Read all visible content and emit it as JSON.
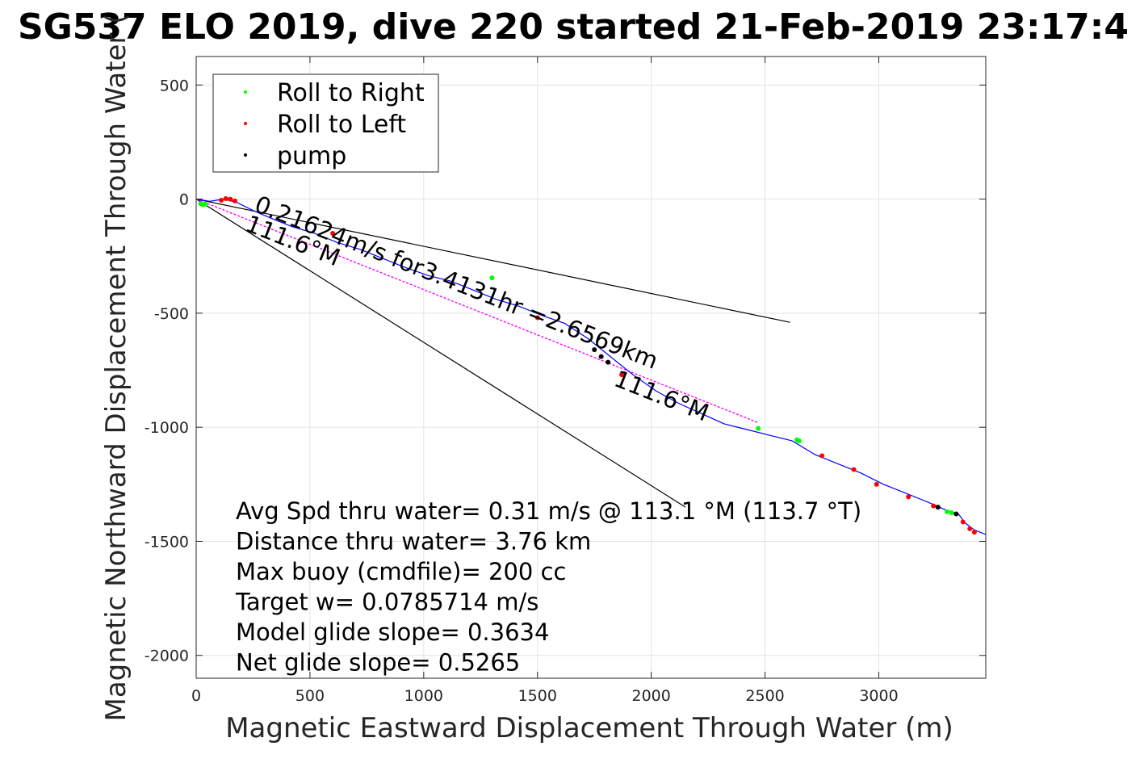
{
  "chart_data": {
    "type": "line",
    "title": "SG537 ELO 2019, dive 220 started 21-Feb-2019 23:17:4",
    "xlabel": "Magnetic Eastward Displacement Through Water (m)",
    "ylabel": "Magnetic Northward Displacement Through Water (",
    "xlim": [
      0,
      3470
    ],
    "ylim": [
      -2100,
      625
    ],
    "xticks": [
      0,
      500,
      1000,
      1500,
      2000,
      2500,
      3000
    ],
    "yticks": [
      500,
      0,
      -500,
      -1000,
      -1500,
      -2000
    ],
    "xtick_labels": [
      "0",
      "500",
      "1000",
      "1500",
      "2000",
      "2500",
      "3000"
    ],
    "ytick_labels": [
      "500",
      "0",
      "-500",
      "-1000",
      "-1500",
      "-2000"
    ],
    "grid": true,
    "legend_placement": "top-left",
    "legend": [
      {
        "label": "Roll to Right",
        "color": "#00ff00"
      },
      {
        "label": "Roll to Left",
        "color": "#ff0000"
      },
      {
        "label": "pump",
        "color": "#000000"
      }
    ],
    "series": [
      {
        "name": "Roll to Right",
        "color": "#00ff00",
        "x": [
          20,
          30,
          40,
          1300,
          2470,
          2640,
          2650,
          3300,
          3320
        ],
        "y": [
          -20,
          -25,
          -22,
          -345,
          -1005,
          -1055,
          -1060,
          -1370,
          -1375
        ]
      },
      {
        "name": "Roll to Left",
        "color": "#ff0000",
        "x": [
          110,
          130,
          150,
          170,
          600,
          1500,
          1870,
          2750,
          2890,
          2990,
          3130,
          3240,
          3370,
          3400,
          3420
        ],
        "y": [
          -5,
          2,
          0,
          -8,
          -150,
          -520,
          -770,
          -1125,
          -1185,
          -1250,
          -1305,
          -1345,
          -1415,
          -1445,
          -1460
        ]
      },
      {
        "name": "pump",
        "color": "#000000",
        "x": [
          1750,
          1780,
          1810,
          3260,
          3340
        ],
        "y": [
          -660,
          -690,
          -715,
          -1350,
          -1380
        ]
      }
    ],
    "track": {
      "color": "#0000ff",
      "x": [
        0,
        60,
        120,
        180,
        250,
        320,
        420,
        520,
        620,
        720,
        820,
        920,
        1020,
        1120,
        1220,
        1320,
        1420,
        1520,
        1620,
        1720,
        1820,
        1920,
        2020,
        2120,
        2220,
        2320,
        2420,
        2520,
        2620,
        2720,
        2820,
        2920,
        3020,
        3120,
        3220,
        3300,
        3350,
        3380,
        3420,
        3470
      ],
      "y": [
        0,
        -10,
        0,
        -15,
        -50,
        -80,
        -120,
        -150,
        -190,
        -220,
        -260,
        -300,
        -335,
        -360,
        -400,
        -440,
        -470,
        -510,
        -545,
        -610,
        -690,
        -770,
        -840,
        -895,
        -940,
        -985,
        -1010,
        -1035,
        -1060,
        -1120,
        -1160,
        -1200,
        -1250,
        -1290,
        -1330,
        -1365,
        -1380,
        -1420,
        -1450,
        -1470
      ]
    },
    "projected_track": {
      "color": "#ff00ff",
      "x": [
        0,
        2470
      ],
      "y": [
        0,
        -980
      ]
    },
    "wedge_lines": [
      {
        "color": "#000000",
        "x": [
          0,
          2610
        ],
        "y": [
          0,
          -540
        ]
      },
      {
        "color": "#000000",
        "x": [
          0,
          2150
        ],
        "y": [
          0,
          -1350
        ]
      }
    ],
    "annotations": [
      {
        "text": "0.21624m/s for3.4131hr =2.6569km",
        "x": 250,
        "y": -50,
        "angle": 21.6
      },
      {
        "text": "111.6°M",
        "x": 210,
        "y": -135,
        "angle": 21.6
      },
      {
        "text": "111.6°M",
        "x": 1830,
        "y": -815,
        "angle": 21.6
      }
    ],
    "stats": [
      "Avg Spd thru water=  0.31 m/s @ 113.1 °M (113.7 °T)",
      "Distance thru water=  3.76 km",
      "Max buoy (cmdfile)= 200 cc",
      "Target w= 0.0785714 m/s",
      "Model glide slope= 0.3634",
      "Net glide slope= 0.5265"
    ]
  }
}
